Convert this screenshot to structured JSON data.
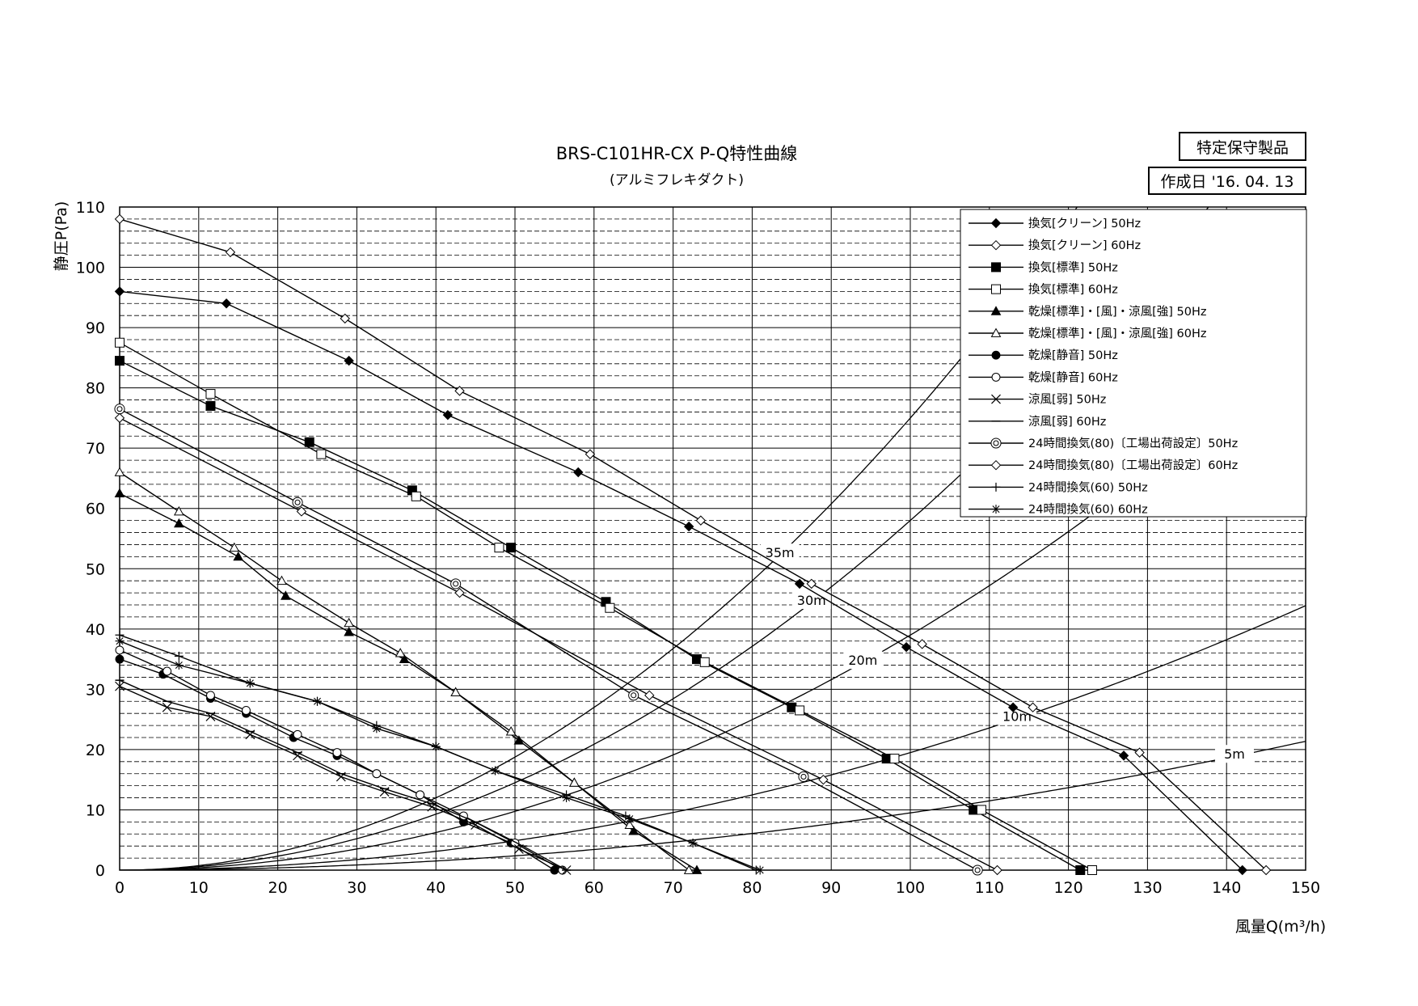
{
  "header": {
    "badge": "特定保守製品",
    "date": "作成日 '16. 04. 13"
  },
  "chart_data": {
    "type": "line",
    "title": "BRS-C101HR-CX  P-Q特性曲線",
    "subtitle": "(アルミフレキダクト)",
    "xlabel": "風量Q(m³/h)",
    "ylabel": "静圧P(Pa)",
    "xlim": [
      0,
      150
    ],
    "ylim": [
      0,
      110
    ],
    "xticks": [
      0,
      10,
      20,
      30,
      40,
      50,
      60,
      70,
      80,
      90,
      100,
      110,
      120,
      130,
      140,
      150
    ],
    "yticks": [
      0,
      10,
      20,
      30,
      40,
      50,
      60,
      70,
      80,
      90,
      100,
      110
    ],
    "grid": true,
    "legend_position": "top-right",
    "series": [
      {
        "name": "換気[クリーン] 50Hz",
        "marker": "diamond-filled",
        "x": [
          0,
          13.5,
          29,
          41.5,
          58,
          72,
          86,
          99.5,
          113,
          127,
          142
        ],
        "y": [
          96,
          94,
          84.5,
          75.5,
          66,
          57,
          47.5,
          37,
          27,
          19,
          0
        ]
      },
      {
        "name": "換気[クリーン] 60Hz",
        "marker": "diamond-open",
        "x": [
          0,
          14,
          28.5,
          43,
          59.5,
          73.5,
          87.5,
          101.5,
          115.5,
          129,
          145
        ],
        "y": [
          108,
          102.5,
          91.5,
          79.5,
          69,
          58,
          47.5,
          37.5,
          27,
          19.5,
          0
        ]
      },
      {
        "name": "換気[標準] 50Hz",
        "marker": "square-filled",
        "x": [
          0,
          11.5,
          24,
          37,
          49.5,
          61.5,
          73,
          85,
          97,
          108,
          121.5
        ],
        "y": [
          84.5,
          77,
          71,
          63,
          53.5,
          44.5,
          35,
          27,
          18.5,
          10,
          0
        ]
      },
      {
        "name": "換気[標準] 60Hz",
        "marker": "square-open",
        "x": [
          0,
          11.5,
          25.5,
          37.5,
          48,
          62,
          74,
          86,
          98,
          109,
          123
        ],
        "y": [
          87.5,
          79,
          69,
          62,
          53.5,
          43.5,
          34.5,
          26.5,
          18.5,
          10,
          0
        ]
      },
      {
        "name": "乾燥[標準]・[風]・涼風[強] 50Hz",
        "marker": "triangle-filled",
        "x": [
          0,
          7.5,
          15,
          21,
          29,
          36,
          42.5,
          50.5,
          57.5,
          65,
          73
        ],
        "y": [
          62.5,
          57.5,
          52,
          45.5,
          39.5,
          35,
          29.5,
          21.5,
          14.5,
          6.5,
          0
        ]
      },
      {
        "name": "乾燥[標準]・[風]・涼風[強] 60Hz",
        "marker": "triangle-open",
        "x": [
          0,
          7.5,
          14.5,
          20.5,
          29,
          35.5,
          42.5,
          49.5,
          57.5,
          64.5,
          72
        ],
        "y": [
          66,
          59.5,
          53.5,
          48,
          41,
          36,
          29.5,
          23,
          14.5,
          7.5,
          0
        ]
      },
      {
        "name": "乾燥[静音] 50Hz",
        "marker": "circle-filled",
        "x": [
          0,
          5.5,
          11.5,
          16,
          22,
          27.5,
          32.5,
          38,
          43.5,
          49.5,
          55
        ],
        "y": [
          35,
          32.5,
          28.5,
          26,
          22,
          19,
          16,
          12.5,
          8,
          4.5,
          0
        ]
      },
      {
        "name": "乾燥[静音] 60Hz",
        "marker": "circle-open",
        "x": [
          0,
          6,
          11.5,
          16,
          22.5,
          27.5,
          32.5,
          38,
          43.5,
          50,
          56
        ],
        "y": [
          36.5,
          33,
          29,
          26.5,
          22.5,
          19.5,
          16,
          12.5,
          9,
          4.5,
          0
        ]
      },
      {
        "name": "涼風[弱] 50Hz",
        "marker": "x",
        "x": [
          0,
          6,
          11.5,
          16.5,
          22.5,
          28,
          33.5,
          39.5,
          45,
          50.5,
          56.5
        ],
        "y": [
          30.5,
          27,
          25.5,
          22.5,
          19,
          15.5,
          13,
          10.5,
          7.5,
          3.5,
          0
        ]
      },
      {
        "name": "涼風[弱] 60Hz",
        "marker": "dash",
        "x": [
          0,
          6,
          11.5,
          16.5,
          22.5,
          28,
          33.5,
          39.5,
          45,
          51,
          56.5
        ],
        "y": [
          31.5,
          28,
          26,
          23,
          19.5,
          16,
          13.5,
          11,
          8,
          4,
          0
        ]
      },
      {
        "name": "24時間換気(80)〔工場出荷設定〕50Hz",
        "marker": "double-circle",
        "x": [
          0,
          22.5,
          42.5,
          65,
          86.5,
          108.5
        ],
        "y": [
          76.5,
          61,
          47.5,
          29,
          15.5,
          0
        ]
      },
      {
        "name": "24時間換気(80)〔工場出荷設定〕60Hz",
        "marker": "diamond-open",
        "x": [
          0,
          23,
          43,
          67,
          89,
          111
        ],
        "y": [
          75,
          59.5,
          46,
          29,
          15,
          0
        ]
      },
      {
        "name": "24時間換気(60) 50Hz",
        "marker": "plus",
        "x": [
          0,
          7.5,
          16.5,
          25,
          32.5,
          40,
          47.5,
          56.5,
          64,
          72.5,
          80.5
        ],
        "y": [
          39,
          35.5,
          31,
          28,
          24,
          20.5,
          16.5,
          12.5,
          9,
          4.5,
          0
        ]
      },
      {
        "name": "24時間換気(60) 60Hz",
        "marker": "asterisk",
        "x": [
          0,
          7.5,
          16.5,
          25,
          32.5,
          40,
          47.5,
          56.5,
          64.5,
          72.5,
          81
        ],
        "y": [
          38,
          34,
          31,
          28,
          23.5,
          20.5,
          16.5,
          12,
          8.5,
          4.5,
          0
        ]
      }
    ],
    "duct_curves": [
      {
        "label": "35m",
        "k": 0.0075
      },
      {
        "label": "30m",
        "k": 0.0058
      },
      {
        "label": "20m",
        "k": 0.0039
      },
      {
        "label": "10m",
        "k": 0.00195
      },
      {
        "label": "5m",
        "k": 0.00095
      }
    ]
  }
}
